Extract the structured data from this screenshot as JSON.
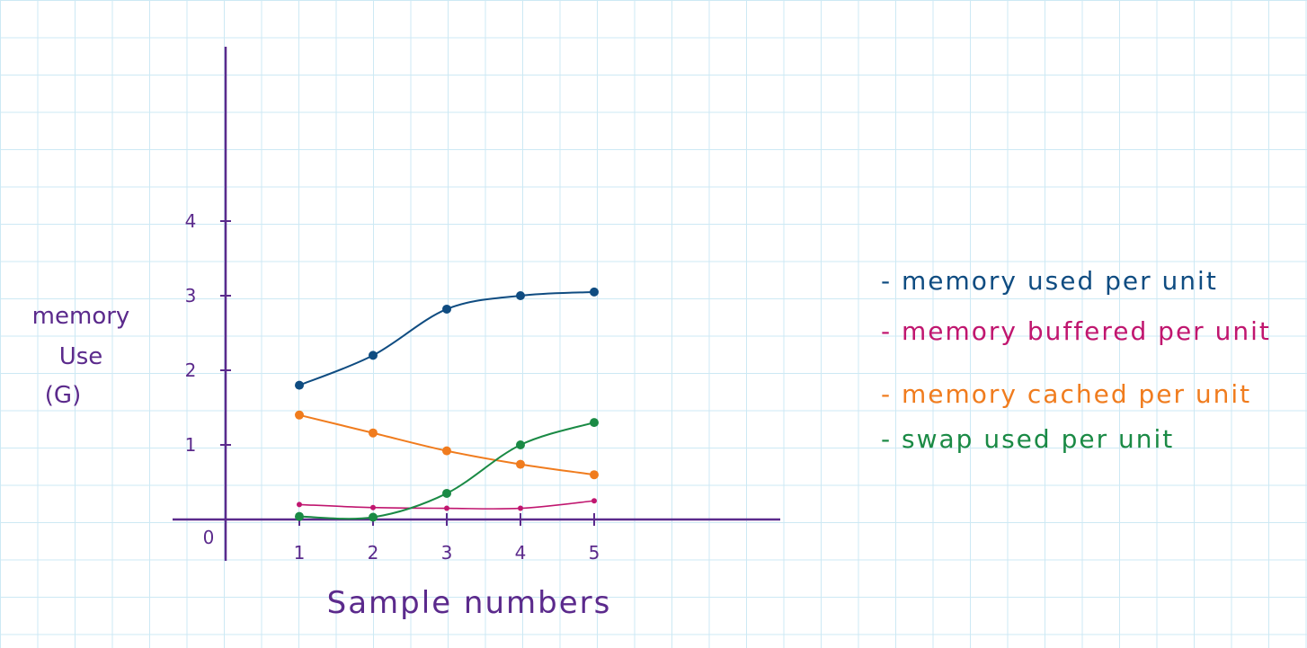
{
  "chart_data": {
    "type": "line",
    "ylabel_lines": [
      "memory",
      "Use",
      "(G)"
    ],
    "xlabel": "Sample numbers",
    "x": [
      1,
      2,
      3,
      4,
      5
    ],
    "xticks": [
      "1",
      "2",
      "3",
      "4",
      "5"
    ],
    "yticks": [
      "0",
      "1",
      "2",
      "3",
      "4"
    ],
    "xlim": [
      0,
      7.5
    ],
    "ylim": [
      0,
      4
    ],
    "grid": true,
    "legend_position": "right",
    "series": [
      {
        "name": "memory used per unit",
        "color": "#0f4c81",
        "values": [
          1.8,
          2.2,
          2.82,
          3.0,
          3.05
        ]
      },
      {
        "name": "memory buffered per unit",
        "color": "#c0166f",
        "values": [
          0.2,
          0.16,
          0.15,
          0.15,
          0.25
        ]
      },
      {
        "name": "memory cached per unit",
        "color": "#f07c1e",
        "values": [
          1.4,
          1.16,
          0.92,
          0.74,
          0.6
        ]
      },
      {
        "name": "swap used per unit",
        "color": "#1a8a45",
        "values": [
          0.04,
          0.03,
          0.35,
          1.0,
          1.3
        ]
      }
    ]
  }
}
